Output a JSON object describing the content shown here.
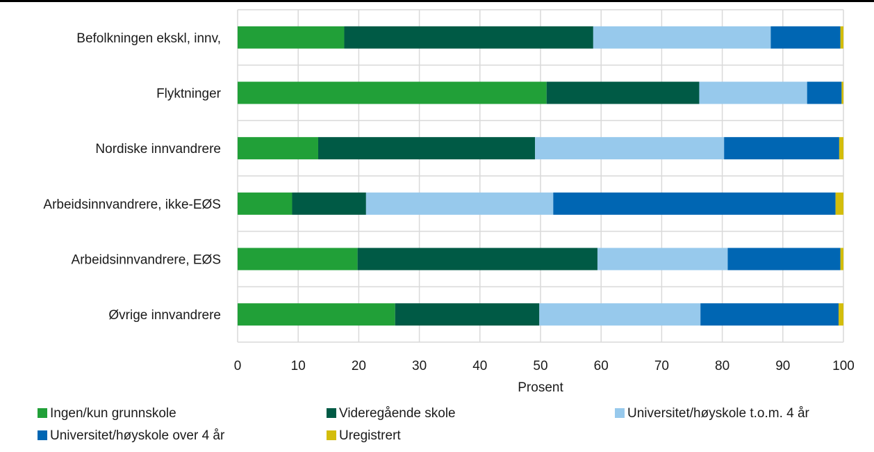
{
  "chart_data": {
    "type": "bar",
    "orientation": "horizontal",
    "stacked": true,
    "title": "",
    "xlabel": "Prosent",
    "ylabel": "",
    "xlim": [
      0,
      100
    ],
    "xticks": [
      0,
      10,
      20,
      30,
      40,
      50,
      60,
      70,
      80,
      90,
      100
    ],
    "grid": true,
    "legend_position": "bottom",
    "categories": [
      "Befolkningen ekskl, innv,",
      "Flyktninger",
      "Nordiske innvandrere",
      "Arbeidsinnvandrere, ikke-EØS",
      "Arbeidsinnvandrere, EØS",
      "Øvrige innvandrere"
    ],
    "series": [
      {
        "name": "Ingen/kun grunnskole",
        "color": "#21a038",
        "values": [
          17.6,
          51.0,
          13.3,
          9.0,
          19.8,
          26.0
        ]
      },
      {
        "name": "Videregående skole",
        "color": "#005a45",
        "values": [
          41.1,
          25.2,
          35.8,
          12.2,
          39.6,
          23.8
        ]
      },
      {
        "name": "Universitet/høyskole t.o.m. 4 år",
        "color": "#97c9ec",
        "values": [
          29.3,
          17.8,
          31.2,
          30.9,
          21.5,
          26.6
        ]
      },
      {
        "name": "Universitet/høyskole over 4 år",
        "color": "#0066b3",
        "values": [
          11.5,
          5.7,
          19.0,
          46.6,
          18.6,
          22.8
        ]
      },
      {
        "name": "Uregistrert",
        "color": "#d3bd0b",
        "values": [
          0.5,
          0.3,
          0.7,
          1.3,
          0.5,
          0.8
        ]
      }
    ]
  }
}
